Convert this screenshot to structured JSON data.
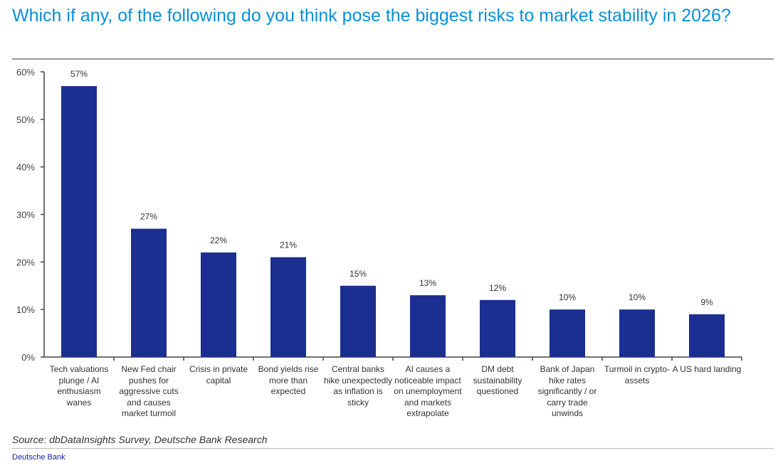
{
  "chart_data": {
    "type": "bar",
    "title": "Which if any, of the following do you think pose the biggest risks to market stability in 2026?",
    "categories": [
      "Tech valuations plunge / AI enthusiasm wanes",
      "New Fed chair pushes for aggressive cuts and causes market turmoil",
      "Crisis in private capital",
      "Bond yields rise more than expected",
      "Central banks hike unexpectedly as inflation is sticky",
      "AI causes a noticeable impact on unemployment and markets extrapolate",
      "DM debt sustainability questioned",
      "Bank of Japan hike rates significantly / or carry trade unwinds",
      "Turmoil in crypto-assets",
      "A US hard landing"
    ],
    "values": [
      57,
      27,
      22,
      21,
      15,
      13,
      12,
      10,
      10,
      9
    ],
    "data_labels": [
      "57%",
      "27%",
      "22%",
      "21%",
      "15%",
      "13%",
      "12%",
      "10%",
      "10%",
      "9%"
    ],
    "ylim": [
      0,
      60
    ],
    "yticks": [
      "0%",
      "10%",
      "20%",
      "30%",
      "40%",
      "50%",
      "60%"
    ],
    "xlabel": "",
    "ylabel": "",
    "grid": false,
    "bar_color": "#1a2f8f"
  },
  "footer": {
    "source": "Source: dbDataInsights Survey, Deutsche Bank Research",
    "brand": "Deutsche Bank"
  }
}
